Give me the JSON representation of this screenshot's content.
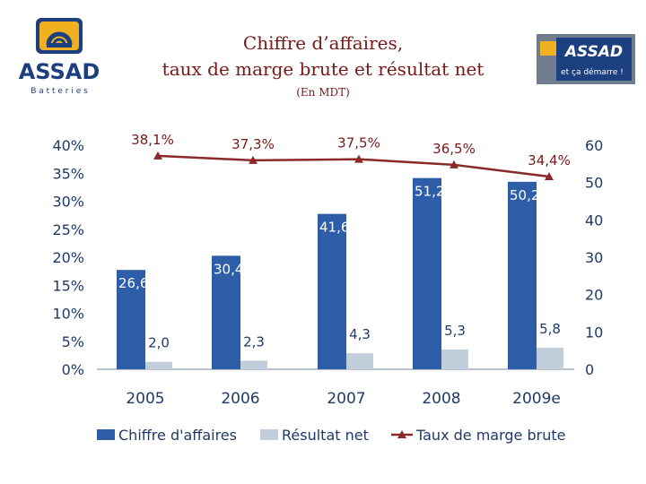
{
  "header": {
    "title_line1": "Chiffre d’affaires,",
    "title_line2": "taux de marge brute et résultat net",
    "subtitle": "(En MDT)"
  },
  "logo_left": {
    "brand": "ASSAD",
    "tagline": "B a t t e r i e s"
  },
  "logo_right": {
    "tag": "et ça démarre !",
    "brand": "ASSAD"
  },
  "colors": {
    "title": "#7a1717",
    "axis_text": "#1f3a68",
    "bar_ca": "#2e5ea8",
    "bar_rn": "#c3cedd",
    "line": "#8b2a2a",
    "brand_blue": "#1c3f80",
    "brand_gold": "#f0b020"
  },
  "chart_data": {
    "type": "bar",
    "categories": [
      "2005",
      "2006",
      "2007",
      "2008",
      "2009e"
    ],
    "series": [
      {
        "name": "Chiffre d'affaires",
        "axis": "right",
        "values": [
          26.6,
          30.4,
          41.6,
          51.2,
          50.2
        ],
        "labels": [
          "26,6",
          "30,4",
          "41,6",
          "51,2",
          "50,2"
        ]
      },
      {
        "name": "Résultat net",
        "axis": "right",
        "values": [
          2.0,
          2.3,
          4.3,
          5.3,
          5.8
        ],
        "labels": [
          "2,0",
          "2,3",
          "4,3",
          "5,3",
          "5,8"
        ]
      },
      {
        "name": "Taux de marge brute",
        "type": "line",
        "axis": "left",
        "values": [
          38.1,
          37.3,
          37.5,
          36.5,
          34.4
        ],
        "labels": [
          "38,1%",
          "37,3%",
          "37,5%",
          "36,5%",
          "34,4%"
        ]
      }
    ],
    "left_axis": {
      "ticks": [
        "0%",
        "5%",
        "10%",
        "15%",
        "20%",
        "25%",
        "30%",
        "35%",
        "40%"
      ],
      "range": [
        0,
        40
      ]
    },
    "right_axis": {
      "ticks": [
        "0",
        "10",
        "20",
        "30",
        "40",
        "50",
        "60"
      ],
      "range": [
        0,
        60
      ]
    },
    "legend": [
      "Chiffre d'affaires",
      "Résultat net",
      "Taux de marge brute"
    ],
    "legend_position": "bottom"
  }
}
